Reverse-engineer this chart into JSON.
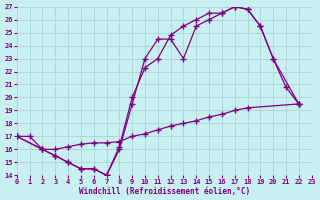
{
  "bg_color": "#c8f0f0",
  "grid_color": "#b0d8d8",
  "line_color": "#800080",
  "xlim": [
    0,
    23
  ],
  "ylim": [
    14,
    27
  ],
  "xticks": [
    0,
    1,
    2,
    3,
    4,
    5,
    6,
    7,
    8,
    9,
    10,
    11,
    12,
    13,
    14,
    15,
    16,
    17,
    18,
    19,
    20,
    21,
    22,
    23
  ],
  "yticks": [
    14,
    15,
    16,
    17,
    18,
    19,
    20,
    21,
    22,
    23,
    24,
    25,
    26,
    27
  ],
  "xlabel": "Windchill (Refroidissement éolien,°C)",
  "curve1": {
    "x": [
      0,
      1,
      2,
      3,
      4,
      5,
      6,
      7,
      8,
      9,
      10,
      11,
      12,
      13,
      14,
      15,
      16,
      17,
      18,
      19,
      20,
      21,
      22
    ],
    "y": [
      17,
      17,
      16,
      15.5,
      15,
      14.5,
      14.5,
      14,
      16,
      19.5,
      23,
      24.5,
      24.5,
      23,
      25.5,
      26,
      26.5,
      27,
      26.8,
      25.5,
      23,
      20.8,
      19.5
    ]
  },
  "curve2": {
    "x": [
      0,
      2,
      3,
      4,
      5,
      6,
      7,
      8,
      9,
      10,
      11,
      12,
      13,
      14,
      15,
      16,
      17,
      18,
      19,
      20,
      22
    ],
    "y": [
      17,
      16,
      15.5,
      15,
      14.5,
      14.5,
      14,
      16.2,
      20,
      22.3,
      23,
      24.8,
      25.5,
      26,
      26.5,
      26.5,
      27,
      26.8,
      25.5,
      23,
      19.5
    ]
  },
  "curve3": {
    "x": [
      0,
      2,
      3,
      4,
      5,
      6,
      7,
      8,
      9,
      10,
      11,
      12,
      13,
      14,
      15,
      16,
      17,
      18,
      22
    ],
    "y": [
      17,
      16,
      16,
      16.2,
      16.4,
      16.5,
      16.5,
      16.6,
      17,
      17.2,
      17.5,
      17.8,
      18,
      18.2,
      18.5,
      18.7,
      19,
      19.2,
      19.5
    ]
  }
}
